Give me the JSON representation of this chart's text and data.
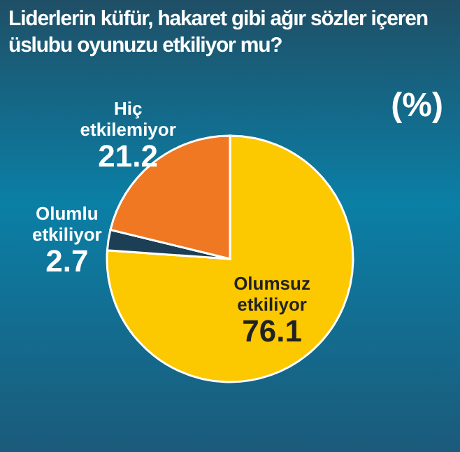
{
  "chart_data": {
    "type": "pie",
    "title": "Liderlerin küfür, hakaret gibi ağır sözler içeren üslubu oyunuzu etkiliyor mu?",
    "annotations": [
      "(%)"
    ],
    "categories": [
      "Olumsuz etkiliyor",
      "Olumlu etkiliyor",
      "Hiç etkilemiyor"
    ],
    "values": [
      76.1,
      2.7,
      21.2
    ],
    "colors": [
      "#fcc800",
      "#1d3f55",
      "#f07823"
    ],
    "data_labels": true
  }
}
